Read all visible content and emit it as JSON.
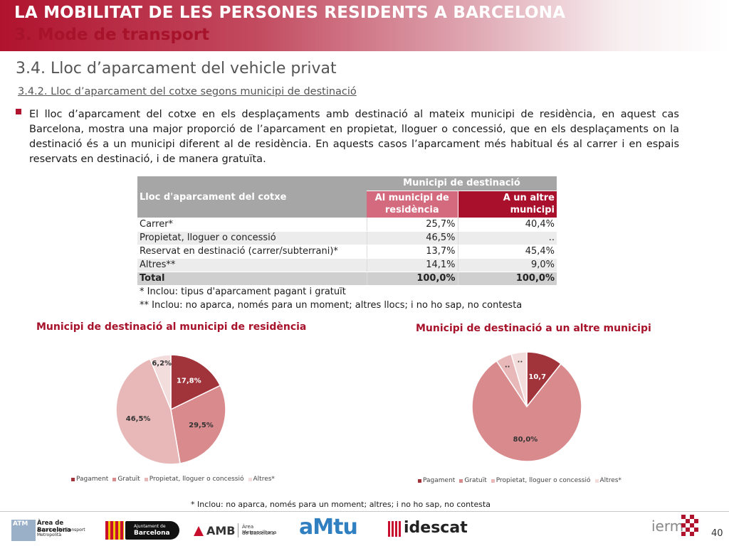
{
  "header": {
    "title": "LA MOBILITAT DE LES PERSONES RESIDENTS A BARCELONA",
    "subtitle": "3. Mode de transport"
  },
  "section_title": "3.4. Lloc d’aparcament del vehicle privat",
  "subsection_title": "3.4.2. Lloc d’aparcament del cotxe segons municipi de destinació",
  "body_text": "El lloc d’aparcament del cotxe en els desplaçaments amb destinació al mateix municipi de residència, en aquest cas Barcelona, mostra una major proporció de l’aparcament en propietat, lloguer o concessió, que en els desplaçaments on la destinació és a un municipi diferent al de residència. En aquests casos l’aparcament més habitual és al carrer i en espais reservats en destinació, i de manera gratuïta.",
  "table": {
    "row_header": "Lloc d'aparcament del cotxe",
    "group_header": "Municipi de destinació",
    "col1": "Al municipi de residència",
    "col2": "A un altre municipi",
    "rows": [
      {
        "label": "Carrer*",
        "v1": "25,7%",
        "v2": "40,4%"
      },
      {
        "label": "Propietat, lloguer o concessió",
        "v1": "46,5%",
        "v2": ".."
      },
      {
        "label": "Reservat en destinació (carrer/subterrani)*",
        "v1": "13,7%",
        "v2": "45,4%"
      },
      {
        "label": "Altres**",
        "v1": "14,1%",
        "v2": "9,0%"
      }
    ],
    "total": {
      "label": "Total",
      "v1": "100,0%",
      "v2": "100,0%"
    },
    "footnote1": "* Inclou: tipus d'aparcament pagant i gratuït",
    "footnote2": "** Inclou: no aparca, només para un moment; altres llocs; i no ho sap, no contesta"
  },
  "chart_data": [
    {
      "type": "pie",
      "title": "Municipi de destinació al municipi de residència",
      "categories": [
        "Pagament",
        "Gratuït",
        "Propietat, lloguer o concessió",
        "Altres*"
      ],
      "values": [
        17.8,
        29.5,
        46.5,
        6.2
      ],
      "labels": [
        "17,8%",
        "29,5%",
        "46,5%",
        "6,2%"
      ],
      "colors": [
        "#a0343a",
        "#d98a8d",
        "#e8b8b8",
        "#f3dcdc"
      ],
      "legend_position": "bottom"
    },
    {
      "type": "pie",
      "title": "Municipi de destinació a un altre municipi",
      "categories": [
        "Pagament",
        "Gratuït",
        "Propietat, lloguer o concessió",
        "Altres*"
      ],
      "values": [
        10.7,
        80.0,
        4.7,
        4.6
      ],
      "labels": [
        "10,7",
        "80,0%",
        "..",
        ".."
      ],
      "colors": [
        "#a0343a",
        "#d98a8d",
        "#e8b8b8",
        "#f3dcdc"
      ],
      "legend_position": "bottom"
    }
  ],
  "bottom_note": "* Inclou: no aparca, només para un moment; altres; i no ho sap, no contesta",
  "footer": {
    "logos": [
      {
        "name": "atm-logo",
        "text": "ATM",
        "caption1": "Àrea de Barcelona",
        "caption2": "Autoritat del Transport",
        "caption3": "Metropolità"
      },
      {
        "name": "ajuntament-logo",
        "caption1": "Ajuntament de",
        "caption2": "Barcelona"
      },
      {
        "name": "amb-logo",
        "text": "AMB",
        "caption1": "Àrea Metropolitana",
        "caption2": "de Barcelona"
      },
      {
        "name": "amtu-logo",
        "text": "aMtu"
      },
      {
        "name": "idescat-logo",
        "text": "idescat"
      },
      {
        "name": "iermb-logo",
        "text": "ierm"
      }
    ],
    "page_number": "40"
  }
}
